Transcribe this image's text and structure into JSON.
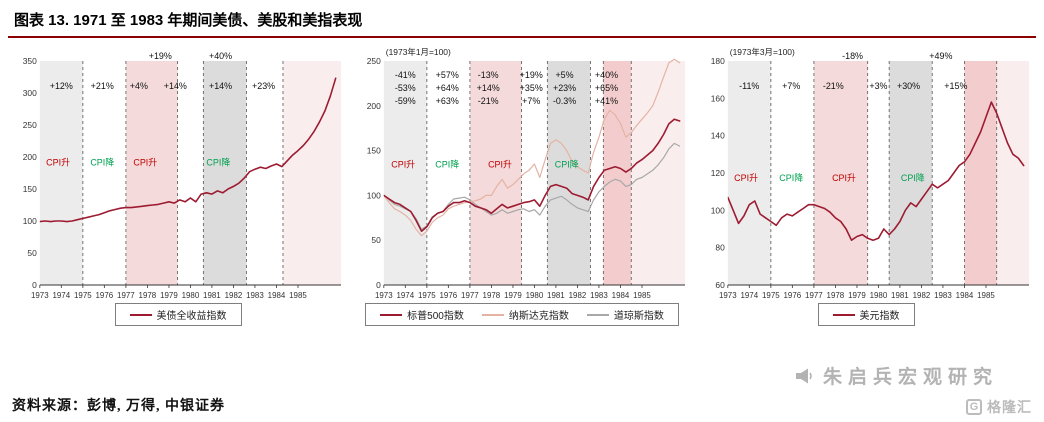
{
  "page": {
    "title": "图表 13. 1971 至 1983 年期间美债、美股和美指表现",
    "source": "资料来源：彭博, 万得, 中银证券",
    "watermark": "朱启兵宏观研究",
    "logo_letter": "G",
    "logo_text": "格隆汇"
  },
  "colors": {
    "accent_red": "#9d1b31",
    "underline": "#8b0000",
    "cpi_up": "#c00000",
    "cpi_down": "#00a050",
    "band_gray_light": "#ececec",
    "band_gray": "#dcdcdc",
    "band_pink": "#f4dada",
    "band_pink_dark": "#f3cdcd",
    "band_pink_light": "#faeded"
  },
  "chart_data": [
    {
      "type": "line",
      "note": "",
      "xlim": [
        1973,
        1987
      ],
      "ylim": [
        0,
        350
      ],
      "yticks": [
        0,
        50,
        100,
        150,
        200,
        250,
        300,
        350
      ],
      "xticks": [
        1973,
        1974,
        1975,
        1976,
        1977,
        1978,
        1979,
        1980,
        1981,
        1982,
        1983,
        1984,
        1985
      ],
      "bands": [
        {
          "x0": 1973,
          "x1": 1975,
          "color": "#ececec"
        },
        {
          "x0": 1977,
          "x1": 1979.4,
          "color": "#f4dada"
        },
        {
          "x0": 1980.6,
          "x1": 1982.6,
          "color": "#dcdcdc"
        },
        {
          "x0": 1984.3,
          "x1": 1987,
          "color": "#faeded"
        }
      ],
      "separators": [
        1975,
        1977,
        1979.4,
        1980.6,
        1982.6,
        1984.3
      ],
      "annotations": [
        {
          "x": 1974.0,
          "y": 0.09,
          "rows": [
            "+12%"
          ]
        },
        {
          "x": 1975.9,
          "y": 0.09,
          "rows": [
            "+21%"
          ]
        },
        {
          "x": 1977.6,
          "y": 0.09,
          "rows": [
            "+4%"
          ]
        },
        {
          "x": 1979.3,
          "y": 0.09,
          "rows": [
            "+14%"
          ]
        },
        {
          "x": 1981.4,
          "y": 0.09,
          "rows": [
            "+14%"
          ]
        },
        {
          "x": 1983.4,
          "y": 0.09,
          "rows": [
            "+23%"
          ]
        },
        {
          "x": 1978.6,
          "y": -0.045,
          "rows": [
            "+19%"
          ]
        },
        {
          "x": 1981.4,
          "y": -0.045,
          "rows": [
            "+40%"
          ]
        }
      ],
      "cpi_labels": [
        {
          "x": 1973.85,
          "y": 0.43,
          "text": "CPI升",
          "color": "#c00000"
        },
        {
          "x": 1975.9,
          "y": 0.43,
          "text": "CPI降",
          "color": "#00a050"
        },
        {
          "x": 1977.9,
          "y": 0.43,
          "text": "CPI升",
          "color": "#c00000"
        },
        {
          "x": 1981.3,
          "y": 0.43,
          "text": "CPI降",
          "color": "#00a050"
        }
      ],
      "series": [
        {
          "name": "美债全收益指数",
          "color": "#9d1b31",
          "x_start": 1973,
          "dx": 0.25,
          "values": [
            99,
            100,
            99,
            100,
            100,
            99,
            100,
            102,
            104,
            106,
            108,
            110,
            113,
            116,
            118,
            120,
            121,
            121,
            122,
            123,
            124,
            125,
            126,
            128,
            130,
            128,
            133,
            130,
            136,
            130,
            142,
            144,
            142,
            147,
            144,
            150,
            154,
            159,
            167,
            177,
            181,
            184,
            182,
            186,
            189,
            185,
            194,
            203,
            210,
            218,
            228,
            240,
            255,
            272,
            295,
            323
          ]
        }
      ],
      "legend": [
        {
          "label": "美债全收益指数",
          "color": "#9d1b31"
        }
      ]
    },
    {
      "type": "line",
      "note": "(1973年1月=100)",
      "xlim": [
        1973,
        1987
      ],
      "ylim": [
        0,
        250
      ],
      "yticks": [
        0,
        50,
        100,
        150,
        200,
        250
      ],
      "xticks": [
        1973,
        1974,
        1975,
        1976,
        1977,
        1978,
        1979,
        1980,
        1981,
        1982,
        1983,
        1984,
        1985
      ],
      "bands": [
        {
          "x0": 1973,
          "x1": 1975,
          "color": "#ececec"
        },
        {
          "x0": 1977,
          "x1": 1979.4,
          "color": "#f4dada"
        },
        {
          "x0": 1980.6,
          "x1": 1982.6,
          "color": "#dcdcdc"
        },
        {
          "x0": 1983.2,
          "x1": 1984.5,
          "color": "#f3cdcd"
        },
        {
          "x0": 1984.5,
          "x1": 1987,
          "color": "#faeded"
        }
      ],
      "separators": [
        1975,
        1977,
        1979.4,
        1980.6,
        1982.6,
        1983.2,
        1984.5
      ],
      "annotations": [
        {
          "x": 1974.0,
          "y": 0.04,
          "rows": [
            "-41%",
            "-53%",
            "-59%"
          ]
        },
        {
          "x": 1975.95,
          "y": 0.04,
          "rows": [
            "+57%",
            "+64%",
            "+63%"
          ]
        },
        {
          "x": 1977.85,
          "y": 0.04,
          "rows": [
            "-13%",
            "+14%",
            "-21%"
          ]
        },
        {
          "x": 1979.85,
          "y": 0.04,
          "rows": [
            "+19%",
            "+35%",
            "+7%"
          ]
        },
        {
          "x": 1981.4,
          "y": 0.04,
          "rows": [
            "+5%",
            "+23%",
            "-0.3%"
          ]
        },
        {
          "x": 1983.35,
          "y": 0.04,
          "rows": [
            "+40%",
            "+65%",
            "+41%"
          ]
        }
      ],
      "cpi_labels": [
        {
          "x": 1973.9,
          "y": 0.44,
          "text": "CPI升",
          "color": "#c00000"
        },
        {
          "x": 1975.95,
          "y": 0.44,
          "text": "CPI降",
          "color": "#00a050"
        },
        {
          "x": 1978.4,
          "y": 0.44,
          "text": "CPI升",
          "color": "#c00000"
        },
        {
          "x": 1981.5,
          "y": 0.44,
          "text": "CPI降",
          "color": "#00a050"
        }
      ],
      "series": [
        {
          "name": "标普500指数",
          "color": "#9d1b31",
          "x_start": 1973,
          "dx": 0.25,
          "values": [
            100,
            96,
            92,
            90,
            86,
            82,
            72,
            60,
            65,
            75,
            80,
            82,
            88,
            92,
            92,
            94,
            92,
            88,
            86,
            84,
            80,
            85,
            90,
            86,
            88,
            90,
            92,
            93,
            95,
            88,
            100,
            110,
            112,
            110,
            108,
            102,
            100,
            98,
            95,
            110,
            120,
            128,
            130,
            132,
            130,
            126,
            130,
            136,
            140,
            145,
            150,
            158,
            168,
            180,
            185,
            183
          ]
        },
        {
          "name": "纳斯达克指数",
          "color": "#e4b3a4",
          "x_start": 1973,
          "dx": 0.25,
          "values": [
            100,
            92,
            85,
            82,
            78,
            72,
            62,
            55,
            60,
            70,
            75,
            78,
            85,
            88,
            90,
            92,
            93,
            94,
            96,
            100,
            100,
            110,
            118,
            108,
            112,
            118,
            124,
            128,
            135,
            120,
            140,
            158,
            162,
            158,
            150,
            138,
            132,
            128,
            125,
            148,
            165,
            185,
            195,
            190,
            180,
            165,
            170,
            178,
            185,
            192,
            200,
            215,
            232,
            248,
            252,
            248
          ]
        },
        {
          "name": "道琼斯指数",
          "color": "#a8a8a8",
          "x_start": 1973,
          "dx": 0.25,
          "values": [
            100,
            95,
            90,
            88,
            85,
            82,
            74,
            62,
            66,
            76,
            80,
            82,
            90,
            96,
            97,
            98,
            95,
            90,
            86,
            82,
            78,
            80,
            84,
            80,
            82,
            84,
            85,
            82,
            84,
            78,
            88,
            95,
            97,
            99,
            95,
            90,
            86,
            84,
            82,
            95,
            104,
            110,
            115,
            118,
            116,
            110,
            112,
            118,
            120,
            124,
            128,
            134,
            142,
            152,
            158,
            155
          ]
        }
      ],
      "legend": [
        {
          "label": "标普500指数",
          "color": "#9d1b31"
        },
        {
          "label": "纳斯达克指数",
          "color": "#e4b3a4"
        },
        {
          "label": "道琼斯指数",
          "color": "#a8a8a8"
        }
      ]
    },
    {
      "type": "line",
      "note": "(1973年3月=100)",
      "xlim": [
        1973,
        1987
      ],
      "ylim": [
        60,
        180
      ],
      "yticks": [
        60,
        80,
        100,
        120,
        140,
        160,
        180
      ],
      "xticks": [
        1973,
        1974,
        1975,
        1976,
        1977,
        1978,
        1979,
        1980,
        1981,
        1982,
        1983,
        1984,
        1985
      ],
      "bands": [
        {
          "x0": 1973,
          "x1": 1975,
          "color": "#ececec"
        },
        {
          "x0": 1977,
          "x1": 1979.5,
          "color": "#f4dada"
        },
        {
          "x0": 1980.5,
          "x1": 1982.5,
          "color": "#dcdcdc"
        },
        {
          "x0": 1984,
          "x1": 1985.5,
          "color": "#f3cdcd"
        },
        {
          "x0": 1985.5,
          "x1": 1987,
          "color": "#faeded"
        }
      ],
      "separators": [
        1975,
        1977,
        1979.5,
        1980.5,
        1982.5,
        1984,
        1985.5
      ],
      "annotations": [
        {
          "x": 1974.0,
          "y": 0.09,
          "rows": [
            "-11%"
          ]
        },
        {
          "x": 1975.95,
          "y": 0.09,
          "rows": [
            "+7%"
          ]
        },
        {
          "x": 1977.9,
          "y": 0.09,
          "rows": [
            "-21%"
          ]
        },
        {
          "x": 1980.0,
          "y": 0.09,
          "rows": [
            "+3%"
          ]
        },
        {
          "x": 1981.4,
          "y": 0.09,
          "rows": [
            "+30%"
          ]
        },
        {
          "x": 1983.6,
          "y": 0.09,
          "rows": [
            "+15%"
          ]
        },
        {
          "x": 1978.8,
          "y": -0.045,
          "rows": [
            "-18%"
          ]
        },
        {
          "x": 1982.9,
          "y": -0.045,
          "rows": [
            "+49%"
          ]
        }
      ],
      "cpi_labels": [
        {
          "x": 1973.85,
          "y": 0.5,
          "text": "CPI升",
          "color": "#c00000"
        },
        {
          "x": 1975.95,
          "y": 0.5,
          "text": "CPI降",
          "color": "#00a050"
        },
        {
          "x": 1978.4,
          "y": 0.5,
          "text": "CPI升",
          "color": "#c00000"
        },
        {
          "x": 1981.6,
          "y": 0.5,
          "text": "CPI降",
          "color": "#00a050"
        }
      ],
      "series": [
        {
          "name": "美元指数",
          "color": "#9d1b31",
          "x_start": 1973,
          "dx": 0.25,
          "values": [
            107,
            100,
            93,
            97,
            103,
            105,
            98,
            96,
            94,
            92,
            96,
            98,
            97,
            99,
            101,
            103,
            103,
            102,
            101,
            99,
            96,
            94,
            90,
            84,
            86,
            87,
            85,
            84,
            85,
            90,
            87,
            90,
            94,
            100,
            104,
            102,
            106,
            110,
            114,
            112,
            114,
            116,
            120,
            124,
            126,
            130,
            136,
            142,
            150,
            158,
            152,
            144,
            136,
            130,
            128,
            124
          ]
        }
      ],
      "legend": [
        {
          "label": "美元指数",
          "color": "#9d1b31"
        }
      ]
    }
  ]
}
